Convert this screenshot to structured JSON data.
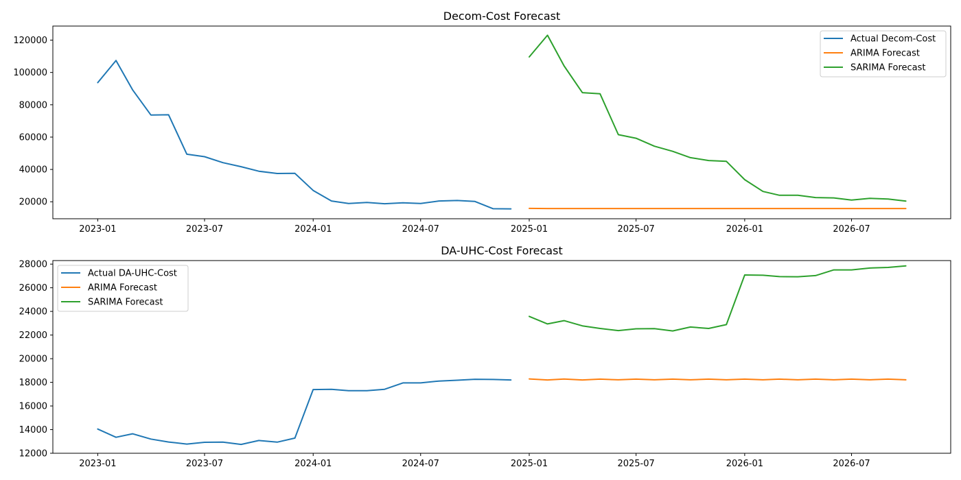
{
  "chart_data": [
    {
      "type": "line",
      "title": "Decom-Cost Forecast",
      "xlabel": "",
      "ylabel": "",
      "x_ticks": [
        "2023-01",
        "2023-07",
        "2024-01",
        "2024-07",
        "2025-01",
        "2025-07",
        "2026-01",
        "2026-07"
      ],
      "y_ticks": [
        "20000",
        "40000",
        "60000",
        "80000",
        "100000",
        "120000"
      ],
      "xlim": [
        "2022-10-17",
        "2026-12-16"
      ],
      "ylim": [
        9500,
        128700
      ],
      "legend_position": "top-right",
      "grid": false,
      "series": [
        {
          "name": "Actual Decom-Cost",
          "color": "#1f77b4",
          "x": [
            "2023-01-01",
            "2023-02-01",
            "2023-03-01",
            "2023-04-01",
            "2023-05-01",
            "2023-06-01",
            "2023-07-01",
            "2023-08-01",
            "2023-09-01",
            "2023-10-01",
            "2023-11-01",
            "2023-12-01",
            "2024-01-01",
            "2024-02-01",
            "2024-03-01",
            "2024-04-01",
            "2024-05-01",
            "2024-06-01",
            "2024-07-01",
            "2024-08-01",
            "2024-09-01",
            "2024-10-01",
            "2024-11-01",
            "2024-12-01"
          ],
          "y": [
            93700,
            107400,
            89300,
            73700,
            73800,
            49400,
            47900,
            44200,
            41700,
            38900,
            37500,
            37600,
            27000,
            20500,
            18900,
            19600,
            18800,
            19400,
            18900,
            20500,
            20800,
            20200,
            15700,
            15600
          ]
        },
        {
          "name": "ARIMA Forecast",
          "color": "#ff7f0e",
          "x": [
            "2025-01-01",
            "2025-02-01",
            "2025-03-01",
            "2025-04-01",
            "2025-05-01",
            "2025-06-01",
            "2025-07-01",
            "2025-08-01",
            "2025-09-01",
            "2025-10-01",
            "2025-11-01",
            "2025-12-01",
            "2026-01-01",
            "2026-02-01",
            "2026-03-01",
            "2026-04-01",
            "2026-05-01",
            "2026-06-01",
            "2026-07-01",
            "2026-08-01",
            "2026-09-01",
            "2026-10-01"
          ],
          "y": [
            15900,
            15800,
            15800,
            15800,
            15800,
            15800,
            15800,
            15800,
            15800,
            15800,
            15800,
            15800,
            15800,
            15800,
            15800,
            15800,
            15800,
            15800,
            15800,
            15800,
            15800,
            15800
          ]
        },
        {
          "name": "SARIMA Forecast",
          "color": "#2ca02c",
          "x": [
            "2025-01-01",
            "2025-02-01",
            "2025-03-01",
            "2025-04-01",
            "2025-05-01",
            "2025-06-01",
            "2025-07-01",
            "2025-08-01",
            "2025-09-01",
            "2025-10-01",
            "2025-11-01",
            "2025-12-01",
            "2026-01-01",
            "2026-02-01",
            "2026-03-01",
            "2026-04-01",
            "2026-05-01",
            "2026-06-01",
            "2026-07-01",
            "2026-08-01",
            "2026-09-01",
            "2026-10-01"
          ],
          "y": [
            109600,
            123000,
            104100,
            87500,
            86800,
            61500,
            59300,
            54400,
            51200,
            47300,
            45500,
            45000,
            33700,
            26400,
            24000,
            24000,
            22600,
            22400,
            21100,
            22100,
            21700,
            20400
          ]
        }
      ]
    },
    {
      "type": "line",
      "title": "DA-UHC-Cost Forecast",
      "xlabel": "",
      "ylabel": "",
      "x_ticks": [
        "2023-01",
        "2023-07",
        "2024-01",
        "2024-07",
        "2025-01",
        "2025-07",
        "2026-01",
        "2026-07"
      ],
      "y_ticks": [
        "12000",
        "14000",
        "16000",
        "18000",
        "20000",
        "22000",
        "24000",
        "26000",
        "28000"
      ],
      "xlim": [
        "2022-10-17",
        "2026-12-16"
      ],
      "ylim": [
        12000,
        28300
      ],
      "legend_position": "top-left",
      "grid": false,
      "series": [
        {
          "name": "Actual DA-UHC-Cost",
          "color": "#1f77b4",
          "x": [
            "2023-01-01",
            "2023-02-01",
            "2023-03-01",
            "2023-04-01",
            "2023-05-01",
            "2023-06-01",
            "2023-07-01",
            "2023-08-01",
            "2023-09-01",
            "2023-10-01",
            "2023-11-01",
            "2023-12-01",
            "2024-01-01",
            "2024-02-01",
            "2024-03-01",
            "2024-04-01",
            "2024-05-01",
            "2024-06-01",
            "2024-07-01",
            "2024-08-01",
            "2024-09-01",
            "2024-10-01",
            "2024-11-01",
            "2024-12-01"
          ],
          "y": [
            14050,
            13350,
            13650,
            13200,
            12950,
            12780,
            12930,
            12940,
            12750,
            13080,
            12940,
            13280,
            17390,
            17410,
            17290,
            17290,
            17410,
            17950,
            17950,
            18110,
            18180,
            18260,
            18240,
            18200
          ]
        },
        {
          "name": "ARIMA Forecast",
          "color": "#ff7f0e",
          "x": [
            "2025-01-01",
            "2025-02-01",
            "2025-03-01",
            "2025-04-01",
            "2025-05-01",
            "2025-06-01",
            "2025-07-01",
            "2025-08-01",
            "2025-09-01",
            "2025-10-01",
            "2025-11-01",
            "2025-12-01",
            "2026-01-01",
            "2026-02-01",
            "2026-03-01",
            "2026-04-01",
            "2026-05-01",
            "2026-06-01",
            "2026-07-01",
            "2026-08-01",
            "2026-09-01",
            "2026-10-01"
          ],
          "y": [
            18290,
            18200,
            18280,
            18200,
            18270,
            18210,
            18270,
            18210,
            18270,
            18210,
            18270,
            18210,
            18270,
            18210,
            18270,
            18210,
            18270,
            18210,
            18270,
            18210,
            18270,
            18210
          ]
        },
        {
          "name": "SARIMA Forecast",
          "color": "#2ca02c",
          "x": [
            "2025-01-01",
            "2025-02-01",
            "2025-03-01",
            "2025-04-01",
            "2025-05-01",
            "2025-06-01",
            "2025-07-01",
            "2025-08-01",
            "2025-09-01",
            "2025-10-01",
            "2025-11-01",
            "2025-12-01",
            "2026-01-01",
            "2026-02-01",
            "2026-03-01",
            "2026-04-01",
            "2026-05-01",
            "2026-06-01",
            "2026-07-01",
            "2026-08-01",
            "2026-09-01",
            "2026-10-01"
          ],
          "y": [
            23580,
            22940,
            23220,
            22780,
            22560,
            22380,
            22530,
            22540,
            22350,
            22680,
            22560,
            22880,
            27080,
            27060,
            26940,
            26930,
            27030,
            27510,
            27510,
            27670,
            27720,
            27850
          ]
        }
      ]
    }
  ]
}
